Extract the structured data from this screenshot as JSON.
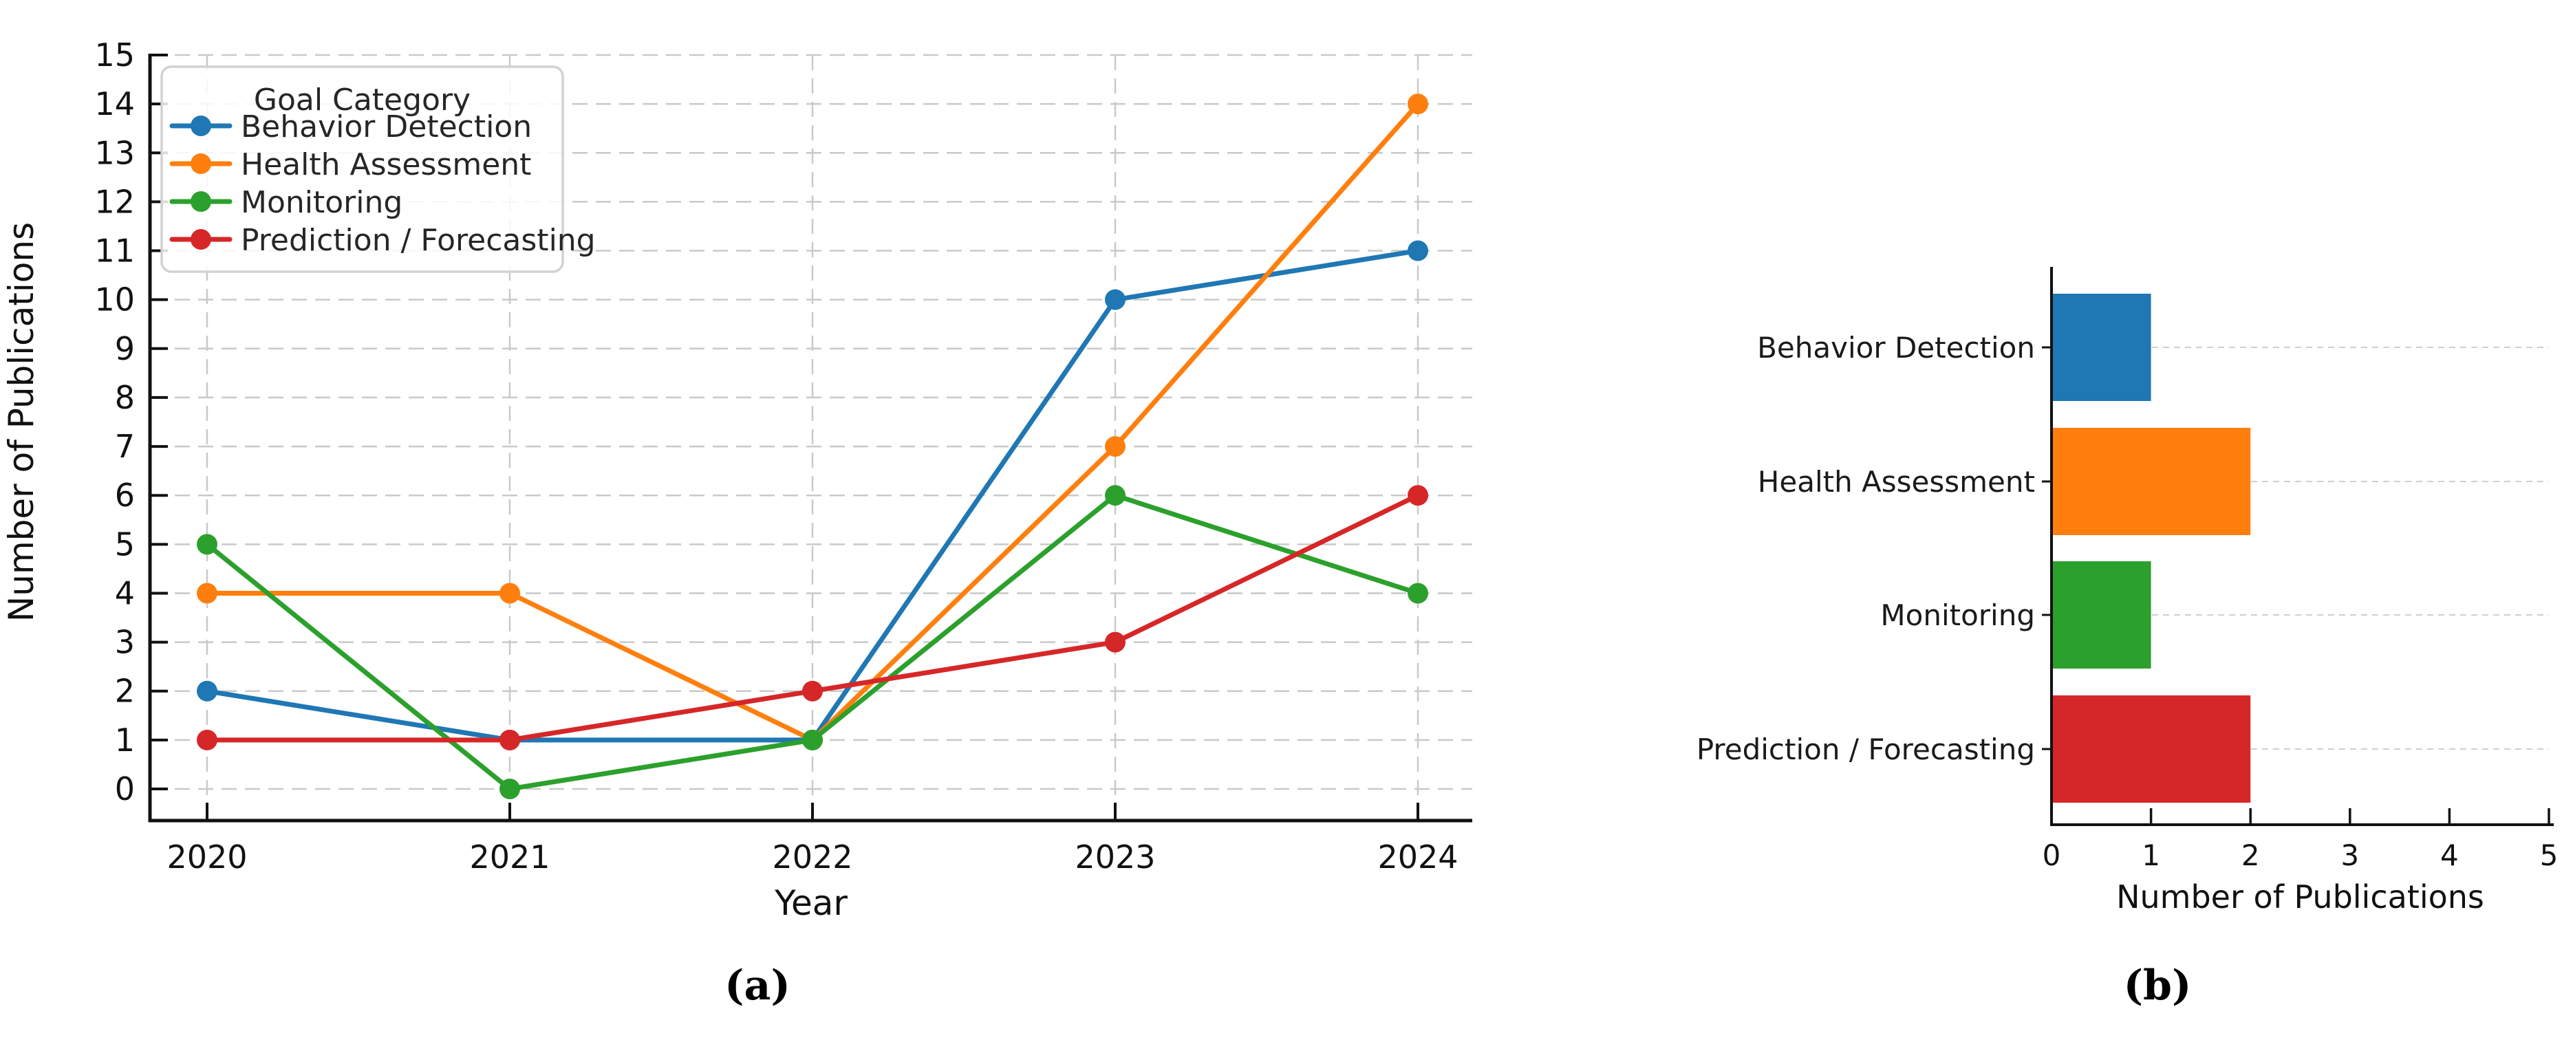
{
  "figure": {
    "caption_a": "(a)",
    "caption_b": "(b)"
  },
  "style": {
    "spine_color": "#111111",
    "grid_color": "#c9c9c9",
    "grid_color_b": "#cfcfcf",
    "legend_border": "#d2d2d2",
    "legend_fill": "rgba(255,255,255,0.85)",
    "text_color": "#111111"
  },
  "chart_data": [
    {
      "id": "publications-by-year",
      "type": "line",
      "xlabel": "Year",
      "ylabel": "Number of Publications",
      "x": [
        "2020",
        "2021",
        "2022",
        "2023",
        "2024"
      ],
      "yticks": [
        0,
        1,
        2,
        3,
        4,
        5,
        6,
        7,
        8,
        9,
        10,
        11,
        12,
        13,
        14,
        15
      ],
      "ylim": [
        0,
        15
      ],
      "grid": true,
      "legend_title": "Goal Category",
      "legend_position": "upper left",
      "series": [
        {
          "name": "Behavior Detection",
          "color": "#1f77b4",
          "values": [
            2,
            1,
            1,
            10,
            11
          ]
        },
        {
          "name": "Health Assessment",
          "color": "#ff7f0e",
          "values": [
            4,
            4,
            1,
            7,
            14
          ]
        },
        {
          "name": "Monitoring",
          "color": "#2ca02c",
          "values": [
            5,
            0,
            1,
            6,
            4
          ]
        },
        {
          "name": "Prediction / Forecasting",
          "color": "#d62728",
          "values": [
            1,
            1,
            2,
            3,
            6
          ]
        }
      ]
    },
    {
      "id": "publications-by-goal",
      "type": "bar",
      "orientation": "horizontal",
      "xlabel": "Number of Publications",
      "categories": [
        "Behavior Detection",
        "Health Assessment",
        "Monitoring",
        "Prediction / Forecasting"
      ],
      "values": [
        1,
        2,
        1,
        2
      ],
      "colors": [
        "#1f77b4",
        "#ff7f0e",
        "#2ca02c",
        "#d62728"
      ],
      "xticks": [
        0,
        1,
        2,
        3,
        4,
        5
      ],
      "xlim": [
        0,
        5
      ],
      "grid": true
    }
  ]
}
